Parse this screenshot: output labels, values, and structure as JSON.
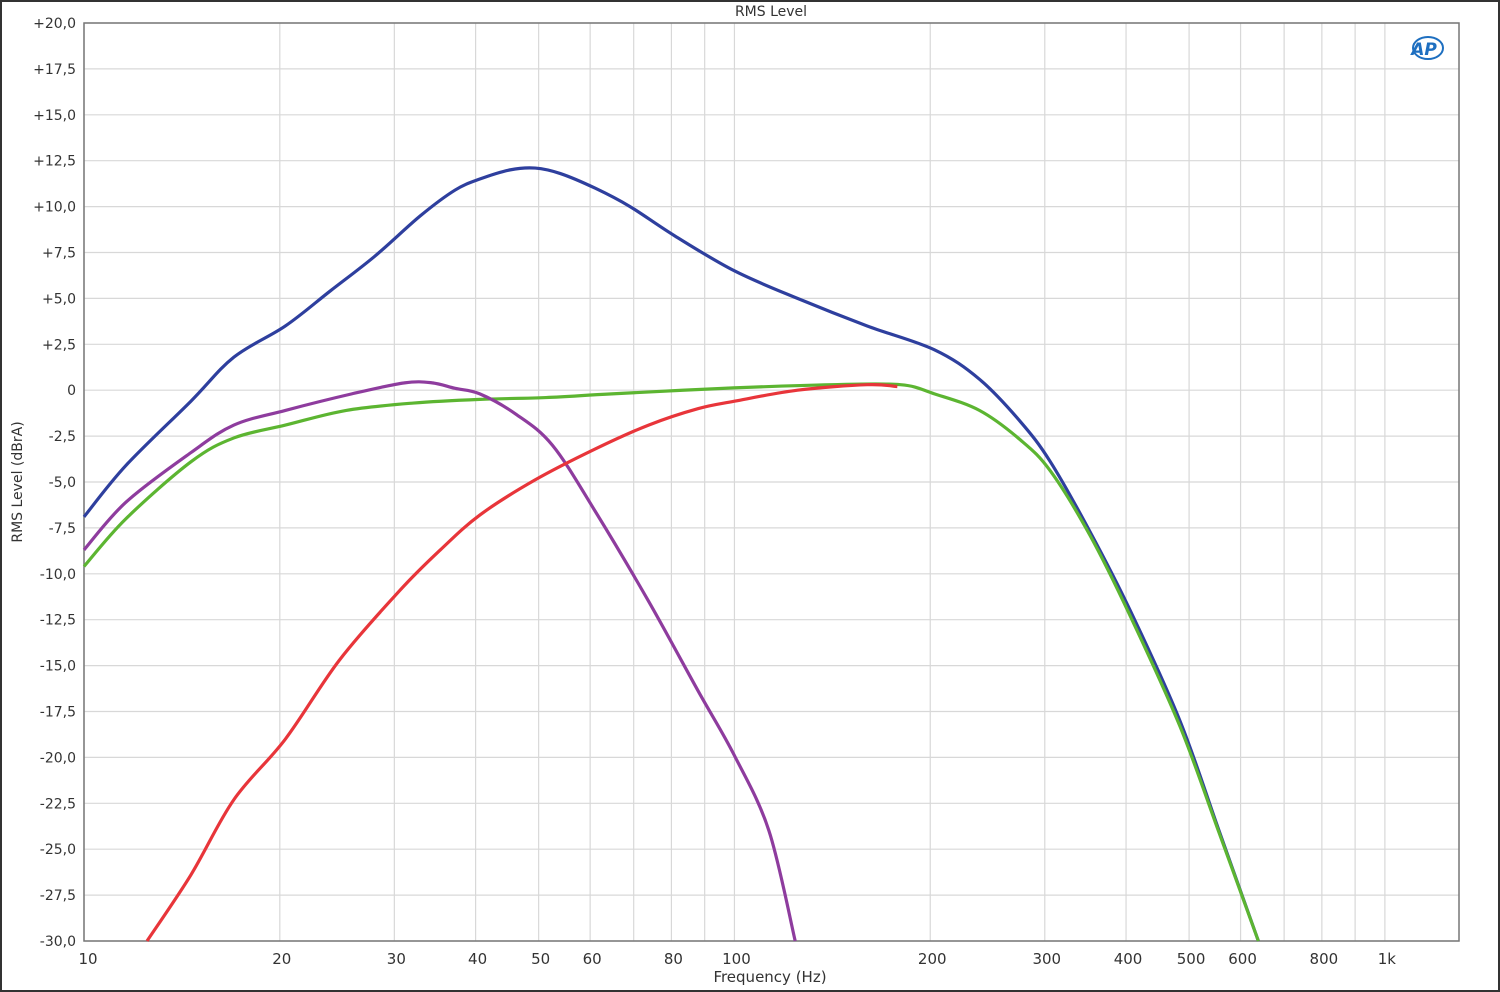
{
  "chart_data": {
    "type": "line",
    "title": "RMS Level",
    "xlabel": "Frequency (Hz)",
    "ylabel": "RMS Level (dBrA)",
    "xscale": "log",
    "xlim": [
      10,
      1300
    ],
    "ylim": [
      -30,
      20
    ],
    "grid": true,
    "x_ticks": [
      10,
      20,
      30,
      40,
      50,
      60,
      80,
      100,
      200,
      300,
      400,
      500,
      600,
      800,
      1000
    ],
    "x_tick_labels": [
      "10",
      "20",
      "30",
      "40",
      "50",
      "60",
      "80",
      "100",
      "200",
      "300",
      "400",
      "500",
      "600",
      "800",
      "1k"
    ],
    "y_ticks": [
      20,
      17.5,
      15,
      12.5,
      10,
      7.5,
      5,
      2.5,
      0,
      -2.5,
      -5,
      -7.5,
      -10,
      -12.5,
      -15,
      -17.5,
      -20,
      -22.5,
      -25,
      -27.5,
      -30
    ],
    "y_tick_labels": [
      "+20,0",
      "+17,5",
      "+15,0",
      "+12,5",
      "+10,0",
      "+7,5",
      "+5,0",
      "+2,5",
      "0",
      "-2,5",
      "-5,0",
      "-7,5",
      "-10,0",
      "-12,5",
      "-15,0",
      "-17,5",
      "-20,0",
      "-22,5",
      "-25,0",
      "-27,5",
      "-30,0"
    ],
    "series": [
      {
        "color": "#2e3f9e",
        "x": [
          10,
          11.6,
          14.6,
          17,
          20.4,
          23.9,
          28,
          32.9,
          37.2,
          40.6,
          45.2,
          49.4,
          54,
          61.1,
          69.1,
          81,
          100,
          125,
          160,
          203,
          238,
          275,
          306,
          352,
          406,
          484,
          556,
          639
        ],
        "y": [
          -6.9,
          -4.1,
          -0.6,
          1.8,
          3.5,
          5.4,
          7.3,
          9.5,
          10.9,
          11.5,
          12.0,
          12.1,
          11.8,
          11.0,
          10.0,
          8.4,
          6.5,
          5.0,
          3.5,
          2.2,
          0.6,
          -1.7,
          -3.9,
          -7.7,
          -12.0,
          -18.0,
          -24.0,
          -30
        ]
      },
      {
        "color": "#5cb531",
        "x": [
          10,
          11.6,
          14.6,
          17,
          20.4,
          25.3,
          32.1,
          40.6,
          51.3,
          64.8,
          96,
          141,
          180,
          203,
          238,
          275,
          306,
          352,
          406,
          484,
          556,
          639
        ],
        "y": [
          -9.6,
          -7.0,
          -3.9,
          -2.6,
          -1.9,
          -1.1,
          -0.7,
          -0.5,
          -0.4,
          -0.2,
          0.1,
          0.3,
          0.3,
          -0.2,
          -1.1,
          -2.7,
          -4.4,
          -7.9,
          -12.3,
          -18.3,
          -24.1,
          -30
        ]
      },
      {
        "color": "#8e3c9e",
        "x": [
          10,
          11.6,
          14.6,
          17,
          20.4,
          25.8,
          31.1,
          34.3,
          37.2,
          40.6,
          46.1,
          52.5,
          61.1,
          73.8,
          88,
          100,
          113,
          124
        ],
        "y": [
          -8.7,
          -6.1,
          -3.4,
          -1.9,
          -1.1,
          -0.2,
          0.4,
          0.4,
          0.1,
          -0.2,
          -1.3,
          -3.0,
          -6.6,
          -11.5,
          -16.4,
          -19.9,
          -24,
          -30
        ]
      },
      {
        "color": "#e8353a",
        "x": [
          12.5,
          14.6,
          17,
          20.4,
          24.7,
          30.6,
          35.3,
          40.6,
          49.3,
          61.1,
          73.8,
          88,
          100,
          125,
          160,
          178
        ],
        "y": [
          -30,
          -26.4,
          -22.3,
          -19.0,
          -14.7,
          -10.9,
          -8.7,
          -6.8,
          -4.9,
          -3.2,
          -1.9,
          -1.0,
          -0.6,
          0,
          0.3,
          0.2
        ]
      }
    ]
  },
  "logo_text": "AP"
}
